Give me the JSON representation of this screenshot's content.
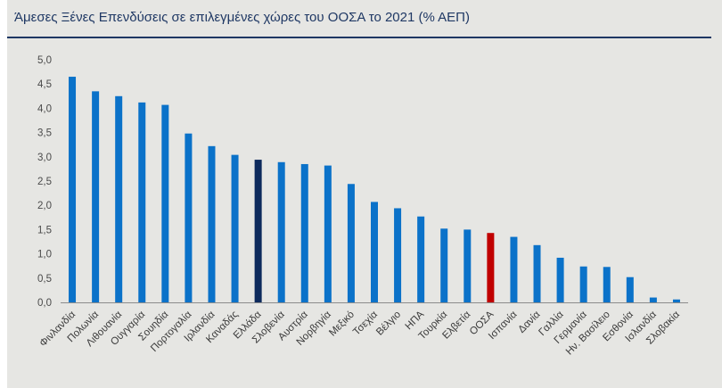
{
  "colors": {
    "default": "#0b72c9",
    "greece": "#0d2a5c",
    "oecd": "#c00000",
    "axis": "#8c8c8c",
    "title": "#1f3864"
  },
  "chart_data": {
    "type": "bar",
    "title": "Άμεσες Ξένες Επενδύσεις σε επιλεγμένες χώρες του ΟΟΣΑ το 2021 (% ΑΕΠ)",
    "xlabel": "",
    "ylabel": "",
    "ylim": [
      0,
      5
    ],
    "yticks": [
      "0,0",
      "0,5",
      "1,0",
      "1,5",
      "2,0",
      "2,5",
      "3,0",
      "3,5",
      "4,0",
      "4,5",
      "5,0"
    ],
    "grid": false,
    "legend": "none",
    "categories": [
      "Φινλανδία",
      "Πολωνία",
      "Λιθουανία",
      "Ουγγαρία",
      "Σουηδία",
      "Πορτογαλία",
      "Ιρλανδία",
      "Καναδάς",
      "Ελλάδα",
      "Σλοβενία",
      "Αυστρία",
      "Νορβηγία",
      "Μεξικό",
      "Τσεχία",
      "Βέλγιο",
      "ΗΠΑ",
      "Τουρκία",
      "Ελβετία",
      "ΟΟΣΑ",
      "Ισπανία",
      "Δανία",
      "Γαλλία",
      "Γερμανία",
      "Ην. Βασίλειο",
      "Εσθονία",
      "Ισλανδία",
      "Σλοβακία"
    ],
    "values": [
      4.65,
      4.35,
      4.25,
      4.12,
      4.07,
      3.48,
      3.22,
      3.04,
      2.94,
      2.89,
      2.85,
      2.82,
      2.44,
      2.07,
      1.94,
      1.77,
      1.52,
      1.5,
      1.43,
      1.35,
      1.18,
      0.92,
      0.74,
      0.73,
      0.52,
      0.1,
      0.06
    ],
    "highlight": {
      "Ελλάδα": "greece",
      "ΟΟΣΑ": "oecd"
    }
  }
}
